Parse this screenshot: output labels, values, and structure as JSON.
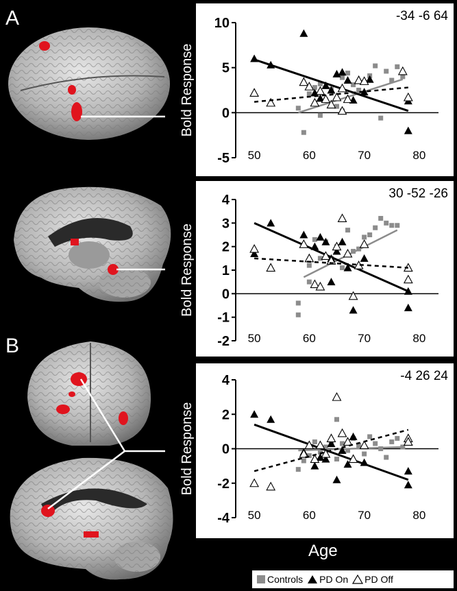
{
  "panel_labels": [
    "A",
    "B"
  ],
  "xlabel": "Age",
  "legend": [
    {
      "label": "Controls",
      "marker": "square",
      "color": "#8c8c8c"
    },
    {
      "label": "PD On",
      "marker": "filled-triangle",
      "color": "#000000"
    },
    {
      "label": "PD Off",
      "marker": "open-triangle",
      "color": "#000000"
    }
  ],
  "brain_images": [
    "brain-top-view",
    "brain-sagittal-view",
    "brain-frontal-view",
    "brain-medial-view"
  ],
  "chart_data": [
    {
      "type": "scatter",
      "coords": "-34 -6 64",
      "ylabel": "Bold Response",
      "xlim": [
        45,
        85
      ],
      "ylim": [
        -5,
        10
      ],
      "yticks": [
        -5,
        0,
        5,
        10
      ],
      "xticks": [
        50,
        60,
        70,
        80
      ],
      "series": [
        {
          "name": "Controls",
          "points": [
            [
              58,
              0.5
            ],
            [
              59,
              -2.2
            ],
            [
              60,
              2.1
            ],
            [
              61,
              2.8
            ],
            [
              62,
              3.2
            ],
            [
              63,
              1.4
            ],
            [
              64,
              2.6
            ],
            [
              65,
              0.7
            ],
            [
              66,
              3.9
            ],
            [
              67,
              4.4
            ],
            [
              68,
              3.1
            ],
            [
              69,
              2.5
            ],
            [
              70,
              3.4
            ],
            [
              71,
              4.1
            ],
            [
              72,
              5.2
            ],
            [
              73,
              -0.6
            ],
            [
              74,
              4.6
            ],
            [
              75,
              3.6
            ],
            [
              76,
              5.1
            ],
            [
              77,
              4.0
            ],
            [
              62,
              -0.3
            ],
            [
              66,
              0.2
            ]
          ],
          "fit": [
            [
              58,
              0.0
            ],
            [
              77,
              3.7
            ]
          ]
        },
        {
          "name": "PD On",
          "points": [
            [
              50,
              6.0
            ],
            [
              53,
              5.3
            ],
            [
              59,
              8.8
            ],
            [
              61,
              2.2
            ],
            [
              62,
              1.6
            ],
            [
              63,
              3.0
            ],
            [
              64,
              2.5
            ],
            [
              65,
              4.3
            ],
            [
              66,
              4.5
            ],
            [
              67,
              3.6
            ],
            [
              68,
              1.4
            ],
            [
              70,
              2.3
            ],
            [
              71,
              3.7
            ],
            [
              78,
              1.3
            ],
            [
              78,
              -2.0
            ]
          ],
          "fit": [
            [
              50,
              5.9
            ],
            [
              78,
              0.2
            ]
          ]
        },
        {
          "name": "PD Off",
          "points": [
            [
              50,
              2.2
            ],
            [
              53,
              1.1
            ],
            [
              59,
              3.4
            ],
            [
              60,
              2.9
            ],
            [
              61,
              1.1
            ],
            [
              62,
              2.4
            ],
            [
              63,
              1.5
            ],
            [
              64,
              0.9
            ],
            [
              65,
              1.7
            ],
            [
              66,
              0.2
            ],
            [
              66,
              2.7
            ],
            [
              67,
              1.5
            ],
            [
              69,
              3.6
            ],
            [
              70,
              3.5
            ],
            [
              77,
              4.6
            ],
            [
              78,
              1.7
            ]
          ],
          "fit": [
            [
              50,
              1.2
            ],
            [
              78,
              2.8
            ]
          ]
        }
      ]
    },
    {
      "type": "scatter",
      "coords": "30 -52 -26",
      "ylabel": "Bold Response",
      "xlim": [
        45,
        85
      ],
      "ylim": [
        -2,
        4
      ],
      "yticks": [
        -2,
        -1,
        0,
        1,
        2,
        3,
        4
      ],
      "xticks": [
        50,
        60,
        70,
        80
      ],
      "series": [
        {
          "name": "Controls",
          "points": [
            [
              58,
              -0.4
            ],
            [
              58,
              -0.9
            ],
            [
              60,
              1.2
            ],
            [
              61,
              2.3
            ],
            [
              62,
              1.5
            ],
            [
              63,
              2.2
            ],
            [
              64,
              1.5
            ],
            [
              65,
              2.0
            ],
            [
              66,
              1.1
            ],
            [
              67,
              2.7
            ],
            [
              68,
              1.8
            ],
            [
              69,
              1.9
            ],
            [
              70,
              2.4
            ],
            [
              71,
              2.5
            ],
            [
              72,
              2.8
            ],
            [
              73,
              3.2
            ],
            [
              74,
              3.0
            ],
            [
              75,
              2.9
            ],
            [
              76,
              2.9
            ],
            [
              60,
              0.5
            ]
          ],
          "fit": [
            [
              59,
              0.7
            ],
            [
              76,
              2.7
            ]
          ]
        },
        {
          "name": "PD On",
          "points": [
            [
              50,
              1.7
            ],
            [
              53,
              3.0
            ],
            [
              59,
              2.5
            ],
            [
              61,
              2.0
            ],
            [
              62,
              2.4
            ],
            [
              63,
              2.2
            ],
            [
              64,
              1.5
            ],
            [
              64,
              0.5
            ],
            [
              65,
              1.8
            ],
            [
              66,
              2.2
            ],
            [
              67,
              1.1
            ],
            [
              68,
              -0.7
            ],
            [
              70,
              1.5
            ],
            [
              78,
              0.1
            ],
            [
              78,
              -0.6
            ]
          ],
          "fit": [
            [
              50,
              3.0
            ],
            [
              78,
              0.1
            ]
          ]
        },
        {
          "name": "PD Off",
          "points": [
            [
              50,
              1.9
            ],
            [
              53,
              1.1
            ],
            [
              59,
              2.1
            ],
            [
              60,
              1.5
            ],
            [
              61,
              0.4
            ],
            [
              62,
              0.3
            ],
            [
              63,
              1.6
            ],
            [
              64,
              1.4
            ],
            [
              65,
              2.0
            ],
            [
              66,
              3.2
            ],
            [
              67,
              1.7
            ],
            [
              68,
              -0.1
            ],
            [
              69,
              1.2
            ],
            [
              70,
              2.1
            ],
            [
              78,
              1.1
            ],
            [
              78,
              0.6
            ]
          ],
          "fit": [
            [
              50,
              1.5
            ],
            [
              78,
              1.1
            ]
          ]
        }
      ]
    },
    {
      "type": "scatter",
      "coords": "-4 26 24",
      "ylabel": "Bold Response",
      "xlim": [
        45,
        85
      ],
      "ylim": [
        -4,
        4
      ],
      "yticks": [
        -4,
        -2,
        0,
        2,
        4
      ],
      "xticks": [
        50,
        60,
        70,
        80
      ],
      "series": [
        {
          "name": "Controls",
          "points": [
            [
              58,
              -1.2
            ],
            [
              59,
              -0.7
            ],
            [
              60,
              -0.4
            ],
            [
              61,
              0.4
            ],
            [
              62,
              -0.2
            ],
            [
              63,
              0.1
            ],
            [
              64,
              0.4
            ],
            [
              65,
              -0.6
            ],
            [
              65,
              1.7
            ],
            [
              66,
              0.3
            ],
            [
              67,
              -0.1
            ],
            [
              68,
              0.6
            ],
            [
              69,
              0.2
            ],
            [
              70,
              -0.3
            ],
            [
              71,
              0.7
            ],
            [
              72,
              0.3
            ],
            [
              73,
              0.0
            ],
            [
              74,
              -0.5
            ],
            [
              75,
              0.4
            ],
            [
              76,
              0.6
            ],
            [
              77,
              0.1
            ]
          ],
          "fit": [
            [
              58,
              -0.1
            ],
            [
              77,
              0.1
            ]
          ]
        },
        {
          "name": "PD On",
          "points": [
            [
              50,
              2.0
            ],
            [
              53,
              1.7
            ],
            [
              59,
              -0.2
            ],
            [
              61,
              -1.0
            ],
            [
              62,
              -0.5
            ],
            [
              63,
              -0.6
            ],
            [
              64,
              0.3
            ],
            [
              65,
              -1.8
            ],
            [
              66,
              -0.1
            ],
            [
              67,
              -0.9
            ],
            [
              68,
              0.7
            ],
            [
              70,
              -0.8
            ],
            [
              78,
              -1.3
            ],
            [
              78,
              -2.1
            ]
          ],
          "fit": [
            [
              50,
              1.4
            ],
            [
              78,
              -1.8
            ]
          ]
        },
        {
          "name": "PD Off",
          "points": [
            [
              50,
              -2.0
            ],
            [
              53,
              -2.2
            ],
            [
              59,
              -0.3
            ],
            [
              60,
              0.2
            ],
            [
              61,
              -0.6
            ],
            [
              62,
              0.2
            ],
            [
              63,
              -0.3
            ],
            [
              64,
              0.6
            ],
            [
              65,
              3.0
            ],
            [
              66,
              0.9
            ],
            [
              67,
              0.4
            ],
            [
              68,
              -0.6
            ],
            [
              70,
              0.2
            ],
            [
              78,
              0.6
            ],
            [
              78,
              0.4
            ]
          ],
          "fit": [
            [
              50,
              -1.3
            ],
            [
              78,
              1.1
            ]
          ]
        }
      ]
    }
  ]
}
